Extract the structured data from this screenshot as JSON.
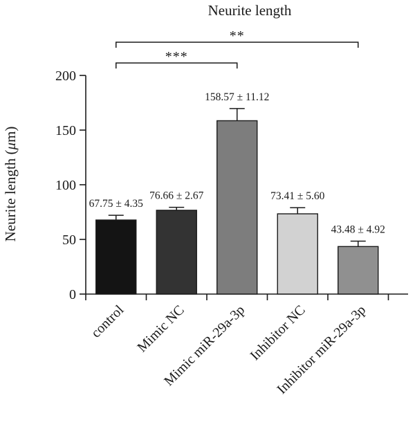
{
  "chart_data": {
    "type": "bar",
    "title": "Neurite length",
    "ylabel": "Neurite length (μm)",
    "ylabel_parts": {
      "pre": "Neurite length (",
      "mu": "μ",
      "post": "m)"
    },
    "xlabel": "",
    "ylim": [
      0,
      200
    ],
    "yticks": [
      0,
      50,
      100,
      150,
      200
    ],
    "categories": [
      "control",
      "Mimic NC",
      "Mimic miR-29a-3p",
      "Inhibitor NC",
      "Inhibitor miR-29a-3p"
    ],
    "values": [
      67.75,
      76.66,
      158.57,
      73.41,
      43.48
    ],
    "errors": [
      4.35,
      2.67,
      11.12,
      5.6,
      4.92
    ],
    "data_labels": [
      "67.75 ± 4.35",
      "76.66 ± 2.67",
      "158.57 ± 11.12",
      "73.41 ± 5.60",
      "43.48 ± 4.92"
    ],
    "bar_colors": [
      "#141414",
      "#333333",
      "#7d7d7d",
      "#d2d2d2",
      "#909090"
    ],
    "significance": [
      {
        "from": 0,
        "to": 2,
        "label": "***"
      },
      {
        "from": 0,
        "to": 4,
        "label": "**"
      }
    ],
    "grid": false,
    "legend": "none"
  }
}
